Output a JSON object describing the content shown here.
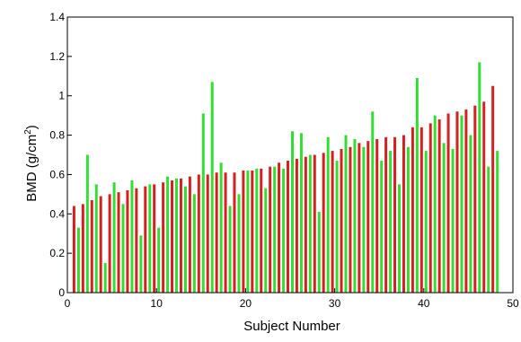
{
  "chart_data": {
    "type": "bar",
    "xlabel": "Subject Number",
    "ylabel_main": "BMD (g/cm",
    "ylabel_sup": "2",
    "ylabel_end": ")",
    "xlim": [
      0,
      50
    ],
    "ylim": [
      0,
      1.4
    ],
    "xticks": [
      "0",
      "10",
      "20",
      "30",
      "40",
      "50"
    ],
    "yticks": [
      "0",
      "0.2",
      "0.4",
      "0.6",
      "0.8",
      "1",
      "1.2",
      "1.4"
    ],
    "grid": false,
    "x": [
      1,
      2,
      3,
      4,
      5,
      6,
      7,
      8,
      9,
      10,
      11,
      12,
      13,
      14,
      15,
      16,
      17,
      18,
      19,
      20,
      21,
      22,
      23,
      24,
      25,
      26,
      27,
      28,
      29,
      30,
      31,
      32,
      33,
      34,
      35,
      36,
      37,
      38,
      39,
      40,
      41,
      42,
      43,
      44,
      45,
      46,
      47,
      48
    ],
    "series": [
      {
        "color": "#d42020",
        "values": [
          0.44,
          0.45,
          0.47,
          0.49,
          0.5,
          0.51,
          0.52,
          0.53,
          0.54,
          0.55,
          0.56,
          0.57,
          0.58,
          0.59,
          0.6,
          0.6,
          0.61,
          0.61,
          0.61,
          0.62,
          0.62,
          0.63,
          0.64,
          0.66,
          0.67,
          0.68,
          0.69,
          0.7,
          0.71,
          0.72,
          0.73,
          0.74,
          0.76,
          0.77,
          0.78,
          0.79,
          0.79,
          0.8,
          0.84,
          0.84,
          0.86,
          0.88,
          0.91,
          0.92,
          0.93,
          0.95,
          0.97,
          1.05
        ]
      },
      {
        "color": "#33dd33",
        "values": [
          0.33,
          0.7,
          0.55,
          0.15,
          0.56,
          0.45,
          0.57,
          0.29,
          0.55,
          0.33,
          0.59,
          0.58,
          0.54,
          0.5,
          0.91,
          1.07,
          0.66,
          0.44,
          0.5,
          0.62,
          0.63,
          0.53,
          0.64,
          0.63,
          0.82,
          0.81,
          0.7,
          0.41,
          0.79,
          0.67,
          0.8,
          0.78,
          0.74,
          0.92,
          0.67,
          0.72,
          0.55,
          0.74,
          1.09,
          0.72,
          0.9,
          0.76,
          0.73,
          0.9,
          0.8,
          1.17,
          0.64,
          0.72
        ]
      }
    ]
  }
}
